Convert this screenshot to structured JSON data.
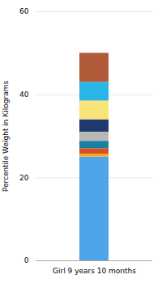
{
  "chart_data": {
    "type": "bar",
    "stacked": true,
    "categories": [
      "Girl 9 years 10 months"
    ],
    "ylabel": "Percentile Weight in Kilograms",
    "series": [
      {
        "color": "#4fa3e8",
        "values": [
          25.0
        ]
      },
      {
        "color": "#f5a623",
        "values": [
          0.7
        ]
      },
      {
        "color": "#d94f1e",
        "values": [
          1.3
        ]
      },
      {
        "color": "#1a7fa0",
        "values": [
          1.8
        ]
      },
      {
        "color": "#b8b8b8",
        "values": [
          2.2
        ]
      },
      {
        "color": "#1e3a6e",
        "values": [
          3.0
        ]
      },
      {
        "color": "#f9e47a",
        "values": [
          4.5
        ]
      },
      {
        "color": "#29b5e8",
        "values": [
          4.5
        ]
      },
      {
        "color": "#b05c3a",
        "values": [
          7.0
        ]
      }
    ],
    "ylim": [
      0,
      60
    ],
    "yticks": [
      0,
      20,
      40,
      60
    ],
    "grid": true
  }
}
